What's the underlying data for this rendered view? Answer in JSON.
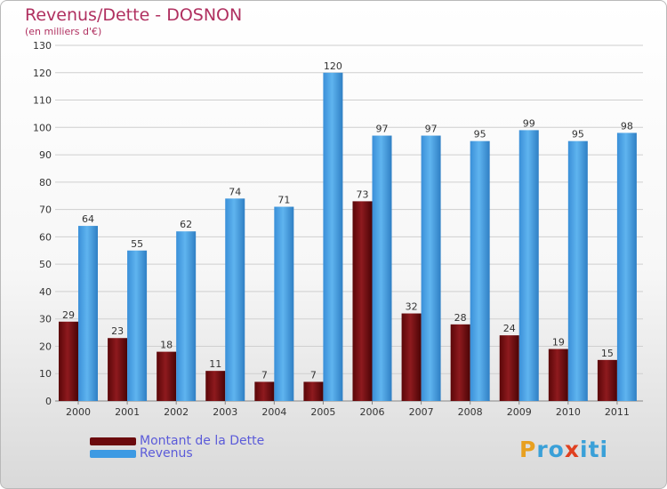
{
  "title": "Revenus/Dette - DOSNON",
  "subtitle": "(en milliers d'€)",
  "chart_data": {
    "type": "bar",
    "categories": [
      "2000",
      "2001",
      "2002",
      "2003",
      "2004",
      "2005",
      "2006",
      "2007",
      "2008",
      "2009",
      "2010",
      "2011"
    ],
    "series": [
      {
        "name": "Montant de la Dette",
        "values": [
          29,
          23,
          18,
          11,
          7,
          7,
          73,
          32,
          28,
          24,
          19,
          15
        ],
        "color": "#7a0f12"
      },
      {
        "name": "Revenus",
        "values": [
          64,
          55,
          62,
          74,
          71,
          120,
          97,
          97,
          95,
          99,
          95,
          98
        ],
        "color": "#4aa3e6"
      }
    ],
    "ylim": [
      0,
      130
    ],
    "yticks": [
      0,
      10,
      20,
      30,
      40,
      50,
      60,
      70,
      80,
      90,
      100,
      110,
      120,
      130
    ],
    "grid": true,
    "legend_position": "bottom-left"
  },
  "legend": {
    "debt_label": "Montant de la Dette",
    "revenue_label": "Revenus",
    "debt_color": "#6b0a0d",
    "revenue_color": "#3d9ae3"
  },
  "logo": {
    "letters": [
      "P",
      "r",
      "o",
      "x",
      "i",
      "t",
      "i"
    ],
    "colors": [
      "#e8a020",
      "#3aa0d8",
      "#3aa0d8",
      "#e04020",
      "#3aa0d8",
      "#3aa0d8",
      "#3aa0d8"
    ]
  }
}
